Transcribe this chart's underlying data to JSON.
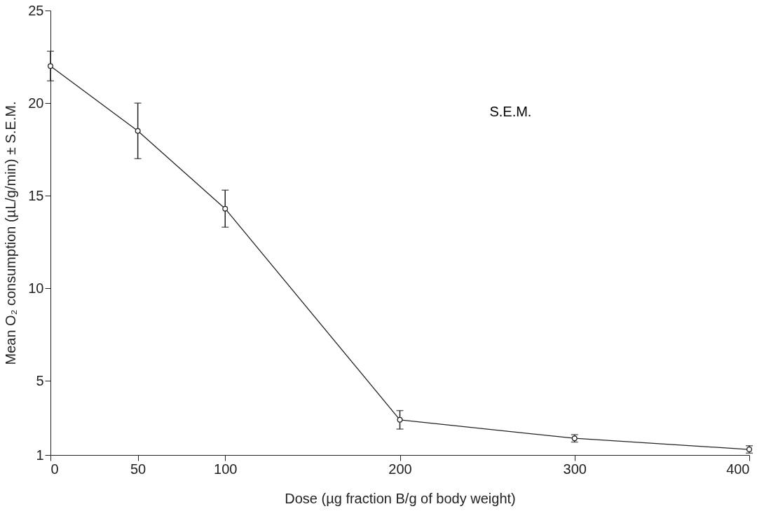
{
  "chart_data": {
    "type": "line",
    "xlabel": "Dose (µg fraction B/g of body weight)",
    "ylabel": "Mean O₂ consumption (µL/g/min) ± S.E.M.",
    "x": [
      0,
      50,
      100,
      200,
      300,
      400
    ],
    "series": [
      {
        "color": "#222222",
        "values": [
          22.0,
          18.5,
          14.3,
          2.9,
          1.9,
          1.3
        ],
        "errors": [
          0.8,
          1.5,
          1.0,
          0.5,
          0.2,
          0.2
        ]
      }
    ],
    "xlim": [
      0,
      400
    ],
    "xticks": [
      0,
      50,
      100,
      200,
      300,
      400
    ],
    "ylim": [
      1,
      25
    ],
    "yticks": [
      1,
      5,
      10,
      15,
      20,
      25
    ],
    "annotations": [
      "S.E.M."
    ],
    "marker": "circle",
    "line_style": "solid",
    "grid": false
  }
}
